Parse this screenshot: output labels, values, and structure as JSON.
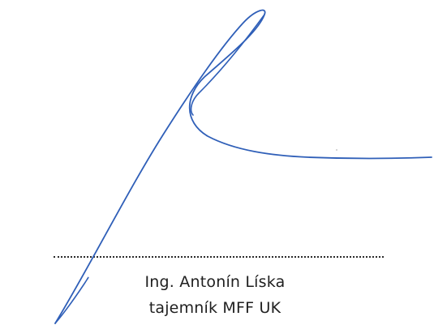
{
  "signature": {
    "signer_name": "Ing. Antonín Líska",
    "signer_title": "tajemník MFF UK",
    "ink_color": "#2f5fb8",
    "line_color": "#2a2a2a",
    "text_color": "#1f1f1f"
  }
}
